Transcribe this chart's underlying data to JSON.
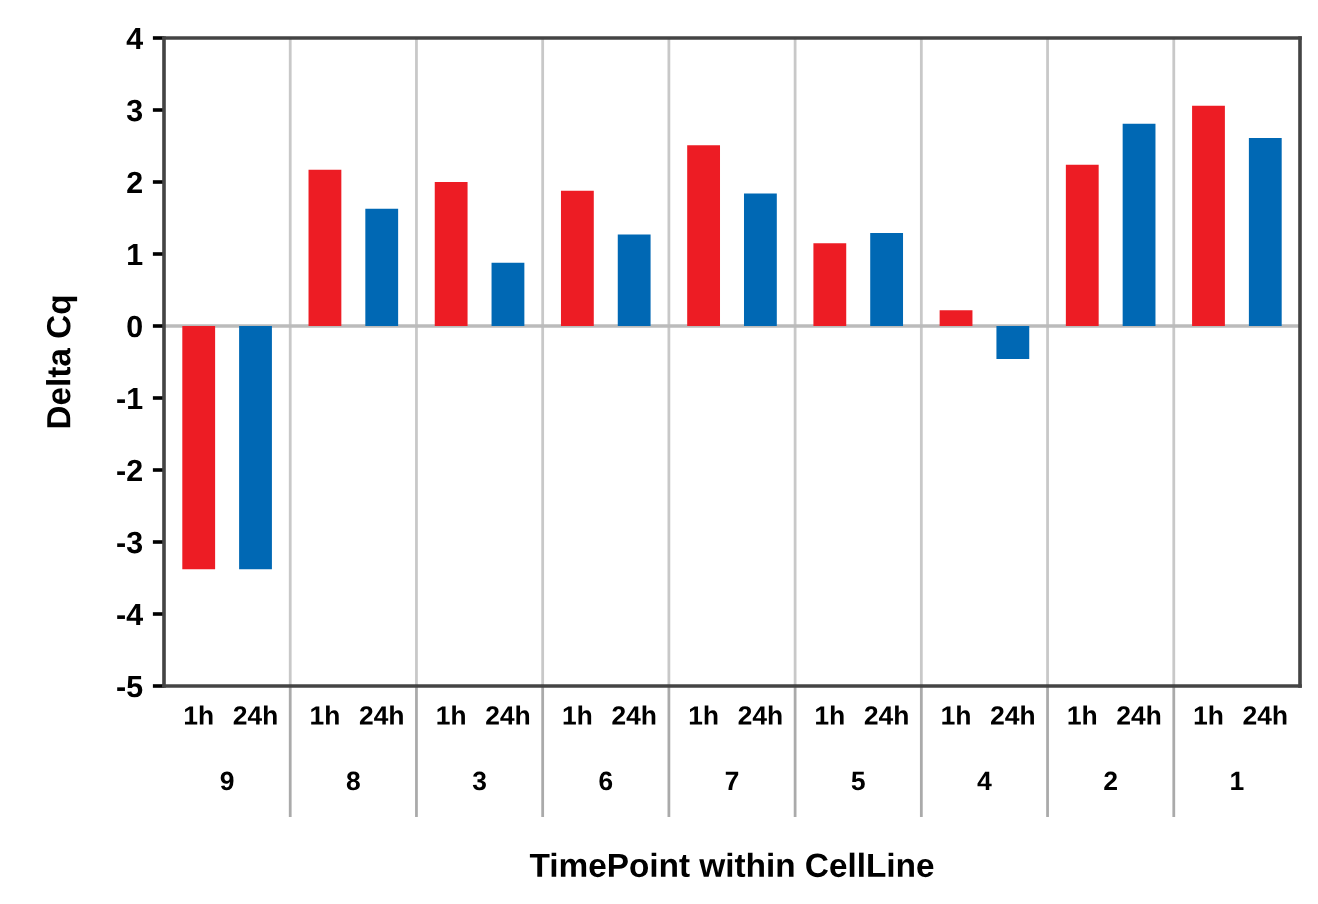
{
  "chart_data": {
    "type": "bar",
    "xlabel": "TimePoint within CellLine",
    "ylabel": "Delta Cq",
    "categories": [
      "9",
      "8",
      "3",
      "6",
      "7",
      "5",
      "4",
      "2",
      "1"
    ],
    "series": [
      {
        "name": "1h",
        "color": "#ed1c24",
        "values": [
          -3.38,
          2.17,
          2.0,
          1.88,
          2.51,
          1.15,
          0.22,
          2.24,
          3.06
        ]
      },
      {
        "name": "24h",
        "color": "#0068b4",
        "values": [
          -3.38,
          1.63,
          0.88,
          1.27,
          1.84,
          1.29,
          -0.46,
          2.81,
          2.61
        ]
      }
    ],
    "ylim": [
      -5,
      4
    ],
    "yticks": [
      -5,
      -4,
      -3,
      -2,
      -1,
      0,
      1,
      2,
      3,
      4
    ],
    "grid": "x",
    "legend": false,
    "ref_lines": [
      {
        "axis": "y",
        "value": 0,
        "color": "#bbbbbb"
      }
    ]
  }
}
